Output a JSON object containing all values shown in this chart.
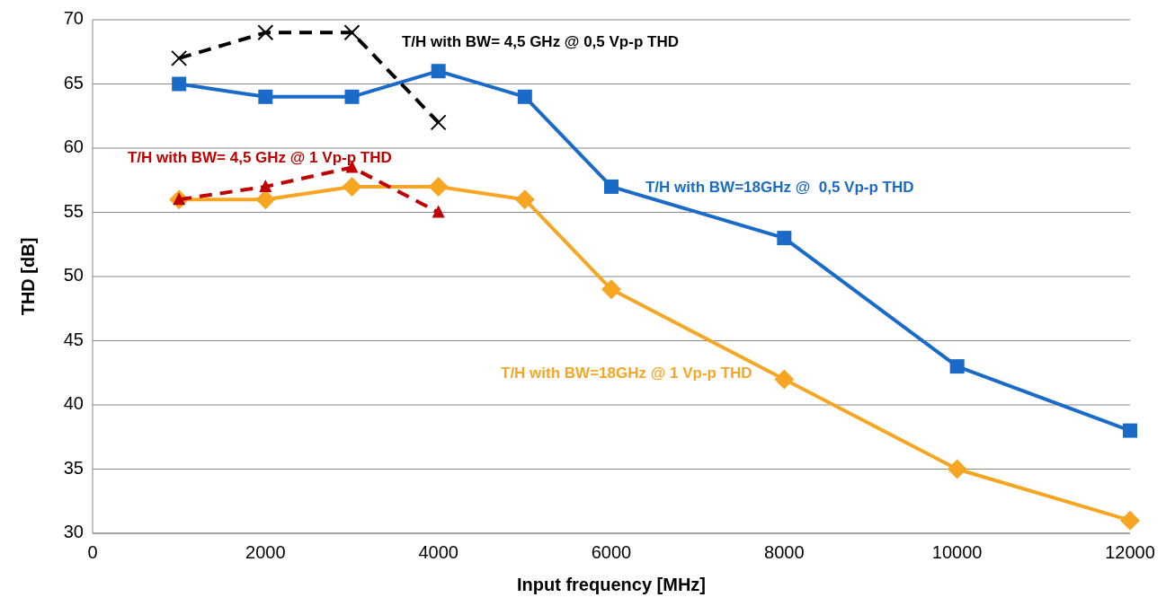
{
  "chart_data": {
    "type": "line",
    "xlabel": "Input frequency [MHz]",
    "ylabel": "THD [dB]",
    "xlim": [
      0,
      12000
    ],
    "xticks": [
      0,
      2000,
      4000,
      6000,
      8000,
      10000,
      12000
    ],
    "ylim": [
      30,
      70
    ],
    "yticks": [
      30,
      35,
      40,
      45,
      50,
      55,
      60,
      65,
      70
    ],
    "grid": "y",
    "series": [
      {
        "name": "T/H with BW=18GHz @  0,5 Vp-p THD",
        "color": "#1a6bc8",
        "marker": "square",
        "line_style": "solid",
        "x": [
          1000,
          2000,
          3000,
          4000,
          5000,
          6000,
          8000,
          10000,
          12000
        ],
        "values": [
          65,
          64,
          64,
          66,
          64,
          57,
          53,
          43,
          38
        ]
      },
      {
        "name": "T/H with BW=18GHz @ 1 Vp-p THD",
        "color": "#f6a623",
        "marker": "diamond",
        "line_style": "solid",
        "x": [
          1000,
          2000,
          3000,
          4000,
          5000,
          6000,
          8000,
          10000,
          12000
        ],
        "values": [
          56,
          56,
          57,
          57,
          56,
          49,
          42,
          35,
          31
        ]
      },
      {
        "name": "T/H with BW= 4,5 GHz @ 0,5 Vp-p THD",
        "color": "#000000",
        "marker": "cross",
        "line_style": "dashed",
        "x": [
          1000,
          2000,
          3000,
          4000
        ],
        "values": [
          67,
          69,
          69,
          62
        ]
      },
      {
        "name": "T/H with BW= 4,5 GHz @ 1 Vp-p THD",
        "color": "#c00000",
        "marker": "triangle",
        "line_style": "dashed",
        "x": [
          1000,
          2000,
          3000,
          4000
        ],
        "values": [
          56,
          57,
          58.5,
          55
        ]
      }
    ]
  }
}
